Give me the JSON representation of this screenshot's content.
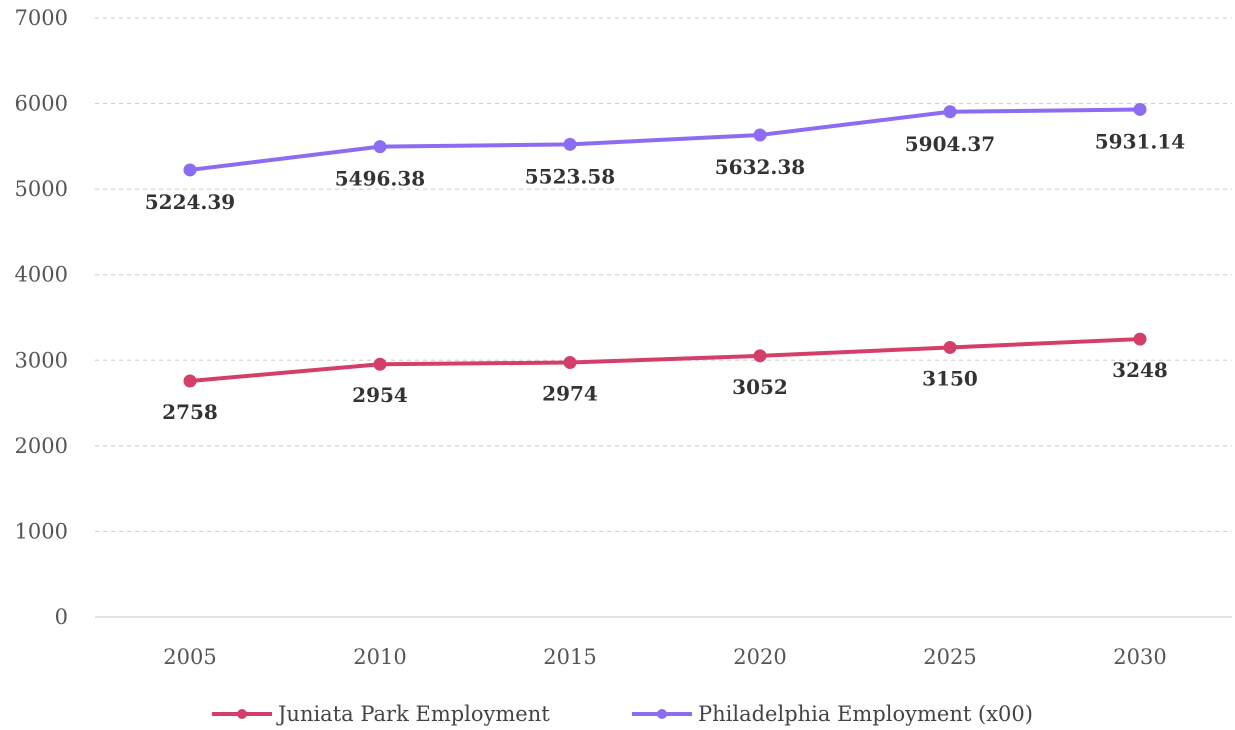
{
  "chart_data": {
    "type": "line",
    "categories": [
      "2005",
      "2010",
      "2015",
      "2020",
      "2025",
      "2030"
    ],
    "series": [
      {
        "name": "Juniata Park Employment",
        "values": [
          2758,
          2954,
          2974,
          3052,
          3150,
          3248
        ],
        "labels": [
          "2758",
          "2954",
          "2974",
          "3052",
          "3150",
          "3248"
        ],
        "color": "#d43f6a"
      },
      {
        "name": "Philadelphia Employment (x00)",
        "values": [
          5224.39,
          5496.38,
          5523.58,
          5632.38,
          5904.37,
          5931.14
        ],
        "labels": [
          "5224.39",
          "5496.38",
          "5523.58",
          "5632.38",
          "5904.37",
          "5931.14"
        ],
        "color": "#8c6cf2"
      }
    ],
    "ylim": [
      0,
      7000
    ],
    "yticks": [
      "0",
      "1000",
      "2000",
      "3000",
      "4000",
      "5000",
      "6000",
      "7000"
    ],
    "grid": true,
    "legend_position": "bottom"
  }
}
